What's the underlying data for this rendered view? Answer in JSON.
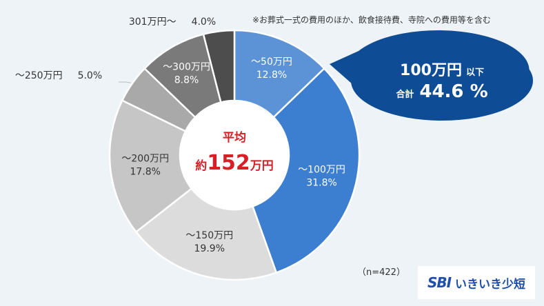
{
  "note": "※お葬式一式の費用のほか、飲食接待費、寺院への費用等を含む",
  "sample": "（n=422）",
  "center": {
    "line1": "平均",
    "prefix": "約",
    "number": "152",
    "suffix": "万円"
  },
  "callout": {
    "amount": "100万円",
    "amount_suffix": "以下",
    "total_label": "合計",
    "total_value": "44.6 %"
  },
  "logo": {
    "mark": "SBI",
    "name": "いきいき少短"
  },
  "colors": {
    "blue_light": "#5b93d6",
    "blue": "#3c7fd1",
    "callout": "#0f4c96",
    "center_text": "#d81f26"
  },
  "chart_data": {
    "type": "pie",
    "donut": true,
    "start": "12 o'clock",
    "direction": "clockwise",
    "slices": [
      {
        "label": "～50万円",
        "value": 12.8,
        "value_label": "12.8%",
        "color": "#5b93d6",
        "text_color": "#ffffff"
      },
      {
        "label": "～100万円",
        "value": 31.8,
        "value_label": "31.8%",
        "color": "#3c7fd1",
        "text_color": "#ffffff"
      },
      {
        "label": "～150万円",
        "value": 19.9,
        "value_label": "19.9%",
        "color": "#dcdcdc",
        "text_color": "#333333"
      },
      {
        "label": "～200万円",
        "value": 17.8,
        "value_label": "17.8%",
        "color": "#c6c6c6",
        "text_color": "#333333"
      },
      {
        "label": "～250万円",
        "value": 5.0,
        "value_label": "5.0%",
        "color": "#a9a9a9",
        "text_color": "#333333"
      },
      {
        "label": "～300万円",
        "value": 8.8,
        "value_label": "8.8%",
        "color": "#7a7a7a",
        "text_color": "#ffffff"
      },
      {
        "label": "301万円～",
        "value": 4.0,
        "value_label": "4.0%",
        "color": "#4d4d4d",
        "text_color": "#333333"
      }
    ]
  }
}
